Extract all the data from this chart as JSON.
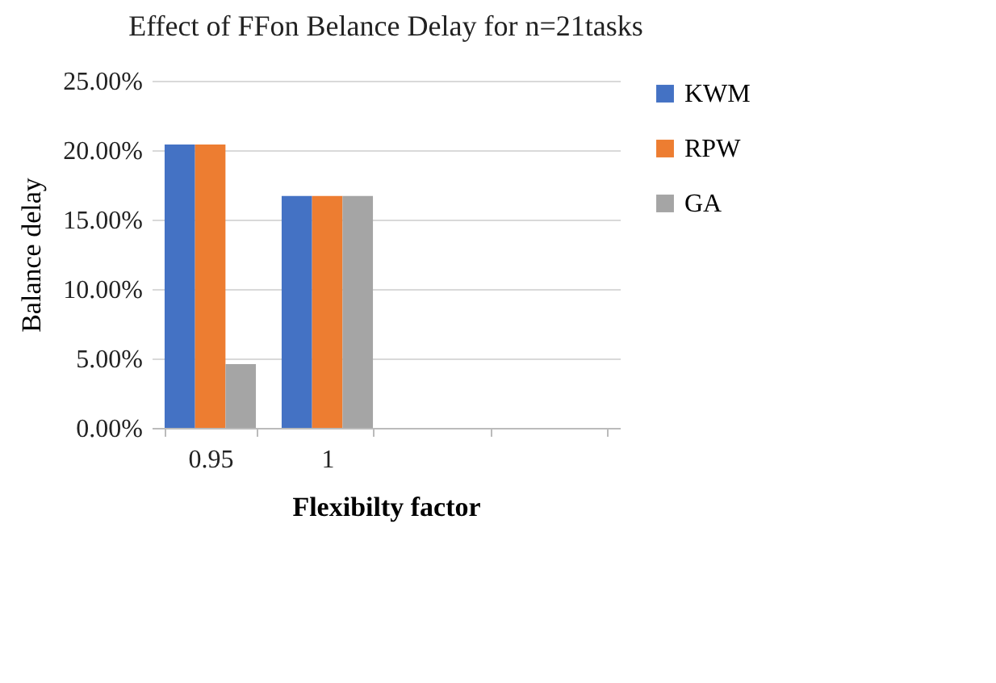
{
  "chart_data": {
    "type": "bar",
    "title": "Effect of FFon Belance Delay for n=21tasks",
    "xlabel": "Flexibilty  factor",
    "ylabel": "Balance delay",
    "categories": [
      "0.95",
      "1",
      null,
      null
    ],
    "series": [
      {
        "name": "KWM",
        "color": "#4472c4",
        "values": [
          20.4,
          16.7,
          null,
          null
        ]
      },
      {
        "name": "RPW",
        "color": "#ed7d31",
        "values": [
          20.4,
          16.7,
          null,
          null
        ]
      },
      {
        "name": "GA",
        "color": "#a5a5a5",
        "values": [
          4.6,
          16.7,
          null,
          null
        ]
      }
    ],
    "ylim": [
      0,
      25
    ],
    "yticks": [
      {
        "value": 0,
        "label": "0.00%"
      },
      {
        "value": 5,
        "label": "5.00%"
      },
      {
        "value": 10,
        "label": "10.00%"
      },
      {
        "value": 15,
        "label": "15.00%"
      },
      {
        "value": 20,
        "label": "20.00%"
      },
      {
        "value": 25,
        "label": "25.00%"
      }
    ],
    "grid": "y",
    "legend": "right"
  }
}
